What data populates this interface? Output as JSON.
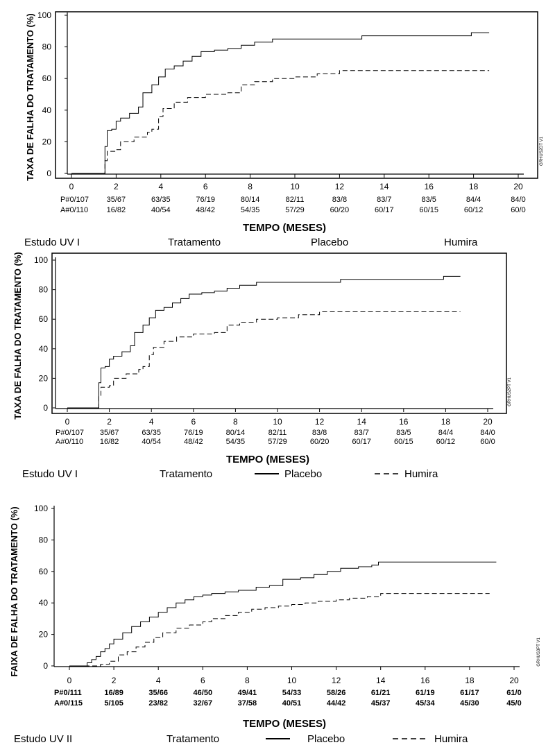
{
  "chart_data": [
    {
      "type": "line",
      "ylabel": "TAXA DE FALHA DO TRATAMENTO (%)",
      "xlabel": "TEMPO (MESES)",
      "code": "GRHUS2DT V1",
      "xlim": [
        0,
        20
      ],
      "ylim": [
        0,
        100
      ],
      "xticks": [
        0,
        2,
        4,
        6,
        8,
        10,
        12,
        14,
        16,
        18,
        20
      ],
      "yticks": [
        0,
        20,
        40,
        60,
        80,
        100
      ],
      "series": [
        {
          "name": "Placebo",
          "dash": "solid",
          "x": [
            0,
            1.4,
            1.5,
            1.6,
            1.8,
            2.0,
            2.2,
            2.6,
            3.0,
            3.2,
            3.6,
            3.9,
            4.2,
            4.6,
            5.0,
            5.4,
            5.8,
            6.4,
            7.0,
            7.6,
            8.2,
            9.0,
            11.0,
            13.0,
            17.9,
            18.7
          ],
          "y": [
            0,
            0,
            17,
            27,
            28,
            33,
            35,
            38,
            42,
            51,
            56,
            61,
            66,
            68,
            71,
            74,
            77,
            78,
            79,
            81,
            83,
            85,
            85,
            87,
            89,
            89
          ]
        },
        {
          "name": "Humira",
          "dash": "dashed",
          "x": [
            0,
            1.4,
            1.5,
            1.6,
            2.0,
            2.2,
            2.8,
            3.4,
            3.6,
            3.9,
            4.1,
            4.6,
            5.2,
            6.0,
            7.0,
            7.6,
            8.2,
            9.0,
            10.0,
            11.0,
            12.0,
            18.7
          ],
          "y": [
            0,
            0,
            8,
            14,
            15,
            20,
            23,
            26,
            28,
            36,
            41,
            45,
            48,
            50,
            51,
            56,
            58,
            60,
            61,
            63,
            65,
            65
          ]
        }
      ],
      "risk_table": {
        "bold": false,
        "rows": [
          {
            "label": "P#0/107",
            "values": [
              "35/67",
              "63/35",
              "76/19",
              "80/14",
              "82/11",
              "83/8",
              "83/7",
              "83/5",
              "84/4",
              "84/0"
            ]
          },
          {
            "label": "A#0/110",
            "values": [
              "16/82",
              "40/54",
              "48/42",
              "54/35",
              "57/29",
              "60/20",
              "60/17",
              "60/15",
              "60/12",
              "60/0"
            ]
          }
        ]
      },
      "legend": {
        "study": "Estudo UV I",
        "treatment": "Tratamento",
        "placebo": "Placebo",
        "humira": "Humira"
      }
    },
    {
      "type": "line",
      "ylabel": "TAXA DE FALHA DO TRATAMENTO (%)",
      "xlabel": "TEMPO (MESES)",
      "code": "GRHUS2PT V1",
      "xlim": [
        0,
        20
      ],
      "ylim": [
        0,
        100
      ],
      "xticks": [
        0,
        2,
        4,
        6,
        8,
        10,
        12,
        14,
        16,
        18,
        20
      ],
      "yticks": [
        0,
        20,
        40,
        60,
        80,
        100
      ],
      "series": [
        {
          "name": "Placebo",
          "dash": "solid",
          "x": [
            0,
            1.4,
            1.5,
            1.6,
            1.8,
            2.0,
            2.2,
            2.6,
            3.0,
            3.2,
            3.6,
            3.9,
            4.2,
            4.6,
            5.0,
            5.4,
            5.8,
            6.4,
            7.0,
            7.6,
            8.2,
            9.0,
            11.0,
            13.0,
            17.9,
            18.7
          ],
          "y": [
            0,
            0,
            17,
            27,
            28,
            33,
            35,
            38,
            42,
            51,
            56,
            61,
            66,
            68,
            71,
            74,
            77,
            78,
            79,
            81,
            83,
            85,
            85,
            87,
            89,
            89
          ]
        },
        {
          "name": "Humira",
          "dash": "dashed",
          "x": [
            0,
            1.4,
            1.5,
            1.6,
            2.0,
            2.2,
            2.8,
            3.4,
            3.6,
            3.9,
            4.1,
            4.6,
            5.2,
            6.0,
            7.0,
            7.6,
            8.2,
            9.0,
            10.0,
            11.0,
            12.0,
            18.7
          ],
          "y": [
            0,
            0,
            8,
            14,
            15,
            20,
            23,
            26,
            28,
            36,
            41,
            45,
            48,
            50,
            51,
            56,
            58,
            60,
            61,
            63,
            65,
            65
          ]
        }
      ],
      "risk_table": {
        "bold": false,
        "rows": [
          {
            "label": "P#0/107",
            "values": [
              "35/67",
              "63/35",
              "76/19",
              "80/14",
              "82/11",
              "83/8",
              "83/7",
              "83/5",
              "84/4",
              "84/0"
            ]
          },
          {
            "label": "A#0/110",
            "values": [
              "16/82",
              "40/54",
              "48/42",
              "54/35",
              "57/29",
              "60/20",
              "60/17",
              "60/15",
              "60/12",
              "60/0"
            ]
          }
        ]
      },
      "legend": {
        "study": "Estudo UV I",
        "treatment": "Tratamento",
        "placebo": "Placebo",
        "humira": "Humira"
      }
    },
    {
      "type": "line",
      "ylabel": "FAIXA DE FALHA DO TRATAMENTO (%)",
      "xlabel": "TEMPO (MESES)",
      "code": "GRHUS3PT V1",
      "xlim": [
        0,
        20
      ],
      "ylim": [
        0,
        100
      ],
      "xticks": [
        0,
        2,
        4,
        6,
        8,
        10,
        12,
        14,
        16,
        18,
        20
      ],
      "yticks": [
        0,
        20,
        40,
        60,
        80,
        100
      ],
      "series": [
        {
          "name": "Placebo",
          "dash": "solid",
          "x": [
            0,
            0.6,
            0.8,
            1.0,
            1.2,
            1.4,
            1.6,
            1.8,
            2.0,
            2.4,
            2.8,
            3.2,
            3.6,
            4.0,
            4.4,
            4.8,
            5.2,
            5.6,
            6.0,
            6.4,
            7.0,
            7.6,
            8.4,
            9.0,
            9.6,
            10.4,
            11.0,
            11.6,
            12.2,
            13.0,
            13.6,
            13.9,
            19.2
          ],
          "y": [
            0,
            0,
            2,
            4,
            6,
            9,
            11,
            14,
            17,
            21,
            25,
            28,
            31,
            34,
            37,
            40,
            42,
            44,
            45,
            46,
            47,
            48,
            50,
            51,
            55,
            56,
            58,
            60,
            62,
            63,
            64,
            66,
            66
          ]
        },
        {
          "name": "Humira",
          "dash": "dashed",
          "x": [
            0,
            1.0,
            1.4,
            1.8,
            2.2,
            2.6,
            3.0,
            3.4,
            3.8,
            4.2,
            4.8,
            5.4,
            6.0,
            6.4,
            7.0,
            7.6,
            8.2,
            8.8,
            9.4,
            10.0,
            10.6,
            11.2,
            12.0,
            12.6,
            13.4,
            14.0,
            18.9
          ],
          "y": [
            0,
            0,
            1,
            3,
            7,
            9,
            12,
            15,
            18,
            21,
            24,
            26,
            28,
            30,
            32,
            34,
            36,
            37,
            38,
            39,
            40,
            41,
            42,
            43,
            44,
            46,
            46
          ]
        }
      ],
      "risk_table": {
        "bold": true,
        "rows": [
          {
            "label": "P#0/111",
            "values": [
              "16/89",
              "35/66",
              "46/50",
              "49/41",
              "54/33",
              "58/26",
              "61/21",
              "61/19",
              "61/17",
              "61/0"
            ]
          },
          {
            "label": "A#0/115",
            "values": [
              "5/105",
              "23/82",
              "32/67",
              "37/58",
              "40/51",
              "44/42",
              "45/37",
              "45/34",
              "45/30",
              "45/0"
            ]
          }
        ]
      },
      "legend": {
        "study": "Estudo UV II",
        "treatment": "Tratamento",
        "placebo": "Placebo",
        "humira": "Humira"
      }
    }
  ],
  "fragment": {
    "labels": [
      "Estudo UV I",
      "Tratamento",
      "Placebo",
      "Humira"
    ]
  }
}
